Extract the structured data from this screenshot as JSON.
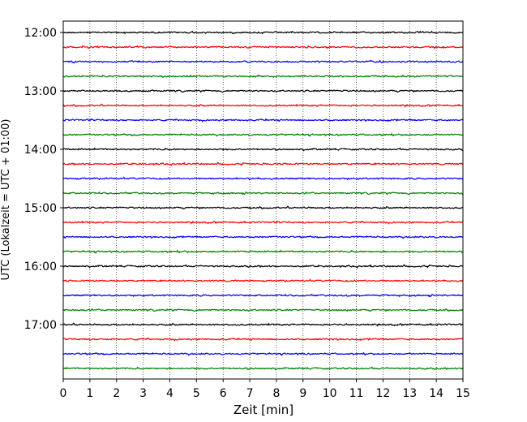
{
  "chart_data": {
    "type": "line",
    "title": "",
    "xlabel": "Zeit  [min]",
    "ylabel": "UTC (Lokalzeit = UTC + 01:00)",
    "xlim": [
      0,
      15
    ],
    "xticks": [
      0,
      1,
      2,
      3,
      4,
      5,
      6,
      7,
      8,
      9,
      10,
      11,
      12,
      13,
      14,
      15
    ],
    "grid_x": true,
    "grid_style": "dotted",
    "y_tick_labels": [
      "12:00",
      "13:00",
      "14:00",
      "15:00",
      "16:00",
      "17:00"
    ],
    "trace_interval_min": 15,
    "traces": [
      {
        "start": "12:00",
        "color": "#000000"
      },
      {
        "start": "12:15",
        "color": "#ff0000"
      },
      {
        "start": "12:30",
        "color": "#0000ff"
      },
      {
        "start": "12:45",
        "color": "#008000"
      },
      {
        "start": "13:00",
        "color": "#000000"
      },
      {
        "start": "13:15",
        "color": "#ff0000"
      },
      {
        "start": "13:30",
        "color": "#0000ff"
      },
      {
        "start": "13:45",
        "color": "#008000"
      },
      {
        "start": "14:00",
        "color": "#000000"
      },
      {
        "start": "14:15",
        "color": "#ff0000"
      },
      {
        "start": "14:30",
        "color": "#0000ff"
      },
      {
        "start": "14:45",
        "color": "#008000"
      },
      {
        "start": "15:00",
        "color": "#000000"
      },
      {
        "start": "15:15",
        "color": "#ff0000"
      },
      {
        "start": "15:30",
        "color": "#0000ff"
      },
      {
        "start": "15:45",
        "color": "#008000"
      },
      {
        "start": "16:00",
        "color": "#000000"
      },
      {
        "start": "16:15",
        "color": "#ff0000"
      },
      {
        "start": "16:30",
        "color": "#0000ff"
      },
      {
        "start": "16:45",
        "color": "#008000"
      },
      {
        "start": "17:00",
        "color": "#000000"
      },
      {
        "start": "17:15",
        "color": "#ff0000"
      },
      {
        "start": "17:30",
        "color": "#0000ff"
      },
      {
        "start": "17:45",
        "color": "#008000"
      }
    ]
  }
}
